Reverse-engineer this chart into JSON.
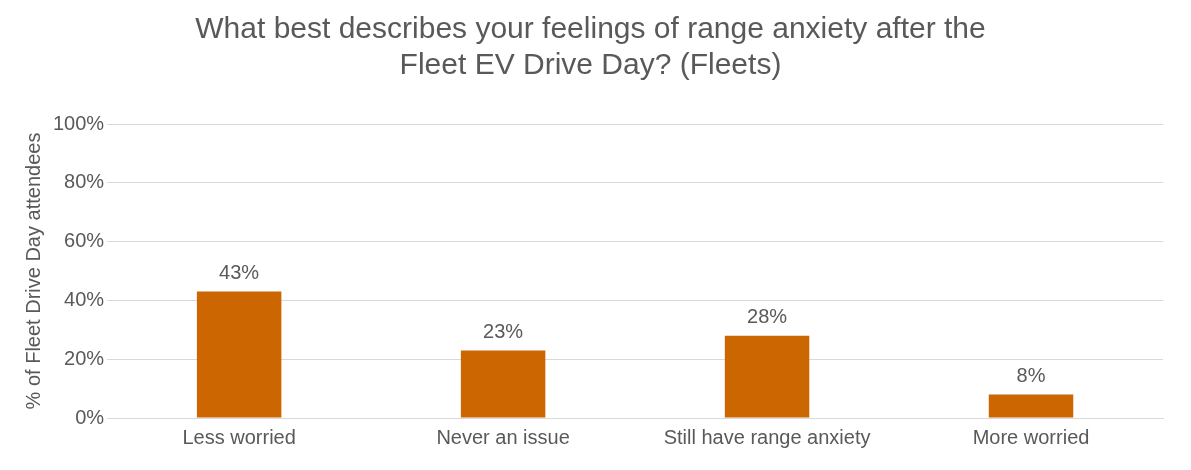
{
  "chart_data": {
    "type": "bar",
    "title": "What best describes your feelings of range anxiety after the Fleet EV Drive Day? (Fleets)",
    "ylabel": "% of Fleet Drive Day attendees",
    "categories": [
      "Less worried",
      "Never an issue",
      "Still have range anxiety",
      "More worried"
    ],
    "values": [
      43,
      23,
      28,
      8
    ],
    "value_labels": [
      "43%",
      "23%",
      "28%",
      "8%"
    ],
    "color": "#cc6600",
    "ylim": [
      0,
      100
    ],
    "yticks": [
      {
        "value": 0,
        "label": "0%"
      },
      {
        "value": 20,
        "label": "20%"
      },
      {
        "value": 40,
        "label": "40%"
      },
      {
        "value": 60,
        "label": "60%"
      },
      {
        "value": 80,
        "label": "80%"
      },
      {
        "value": 100,
        "label": "100%"
      }
    ],
    "grid": "y",
    "legend": false
  }
}
